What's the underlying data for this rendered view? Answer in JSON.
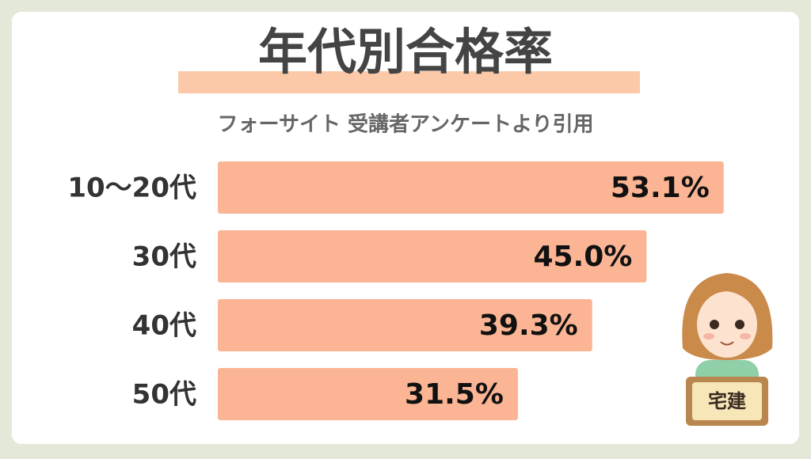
{
  "chart_data": {
    "type": "bar",
    "orientation": "horizontal",
    "title": "年代別合格率",
    "subtitle": "フォーサイト 受講者アンケートより引用",
    "categories": [
      "10〜20代",
      "30代",
      "40代",
      "50代"
    ],
    "values": [
      53.1,
      45.0,
      39.3,
      31.5
    ],
    "value_labels": [
      "53.1%",
      "45.0%",
      "39.3%",
      "31.5%"
    ],
    "color": "#fbb594",
    "illustration_label": "宅建"
  }
}
